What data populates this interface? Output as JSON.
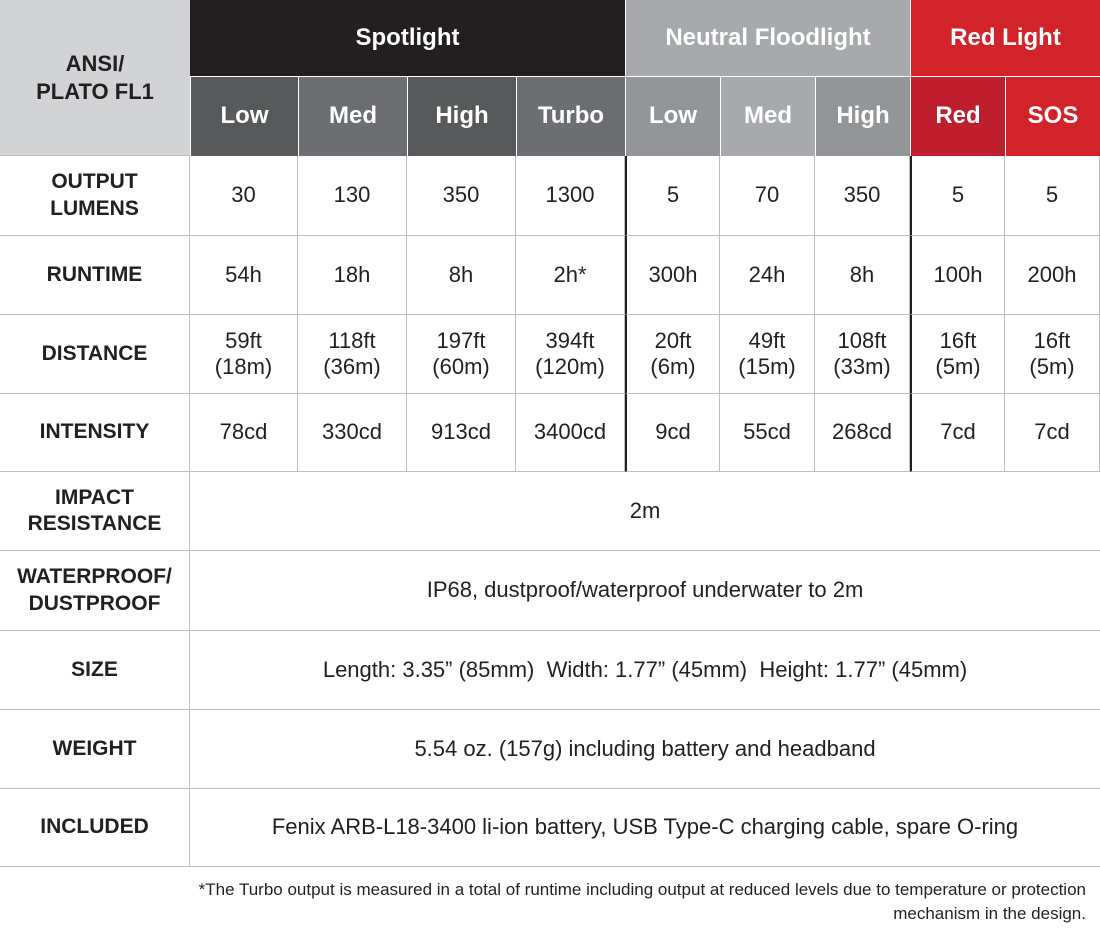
{
  "table": {
    "corner": [
      "ANSI/",
      "PLATO FL1"
    ],
    "groups": [
      "Spotlight",
      "Neutral Floodlight",
      "Red Light"
    ],
    "modes": [
      "Low",
      "Med",
      "High",
      "Turbo",
      "Low",
      "Med",
      "High",
      "Red",
      "SOS"
    ],
    "rows": [
      {
        "label": [
          "OUTPUT",
          "LUMENS"
        ],
        "cells": [
          "30",
          "130",
          "350",
          "1300",
          "5",
          "70",
          "350",
          "5",
          "5"
        ]
      },
      {
        "label": [
          "RUNTIME"
        ],
        "cells": [
          "54h",
          "18h",
          "8h",
          "2h*",
          "300h",
          "24h",
          "8h",
          "100h",
          "200h"
        ]
      },
      {
        "label": [
          "DISTANCE"
        ],
        "cells": [
          [
            "59ft",
            "(18m)"
          ],
          [
            "118ft",
            "(36m)"
          ],
          [
            "197ft",
            "(60m)"
          ],
          [
            "394ft",
            "(120m)"
          ],
          [
            "20ft",
            "(6m)"
          ],
          [
            "49ft",
            "(15m)"
          ],
          [
            "108ft",
            "(33m)"
          ],
          [
            "16ft",
            "(5m)"
          ],
          [
            "16ft",
            "(5m)"
          ]
        ]
      },
      {
        "label": [
          "INTENSITY"
        ],
        "cells": [
          "78cd",
          "330cd",
          "913cd",
          "3400cd",
          "9cd",
          "55cd",
          "268cd",
          "7cd",
          "7cd"
        ]
      },
      {
        "label": [
          "IMPACT",
          "RESISTANCE"
        ],
        "value": "2m"
      },
      {
        "label": [
          "WATERPROOF/",
          "DUSTPROOF"
        ],
        "value": "IP68, dustproof/waterproof underwater to 2m"
      },
      {
        "label": [
          "SIZE"
        ],
        "value": "Length: 3.35” (85mm)  Width: 1.77” (45mm)  Height: 1.77” (45mm)"
      },
      {
        "label": [
          "WEIGHT"
        ],
        "value": "5.54 oz. (157g) including battery and headband"
      },
      {
        "label": [
          "INCLUDED"
        ],
        "value": "Fenix ARB-L18-3400 li-ion battery, USB Type-C charging cable, spare O-ring"
      }
    ]
  },
  "footnote": [
    "*The Turbo output is measured in a total of runtime including output at reduced levels due to temperature or protection",
    "mechanism in the design."
  ]
}
